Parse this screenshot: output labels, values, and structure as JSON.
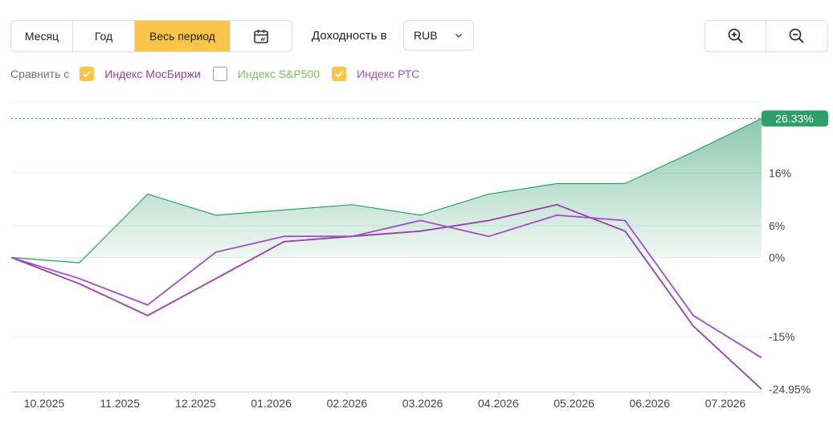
{
  "period_buttons": {
    "month": "Месяц",
    "year": "Год",
    "all": "Весь период",
    "calendar_icon": "calendar-icon"
  },
  "yield_label": "Доходность в",
  "currency": {
    "selected": "RUB",
    "icon": "chevron-down-icon"
  },
  "zoom": {
    "in_icon": "zoom-in-icon",
    "out_icon": "zoom-out-icon"
  },
  "compare": {
    "label": "Сравнить с",
    "items": [
      {
        "label": "Индекс МосБиржи",
        "checked": true,
        "color": "#9b3ea8"
      },
      {
        "label": "Индекс S&P500",
        "checked": false,
        "color": "#7cc05a"
      },
      {
        "label": "Индекс РТС",
        "checked": true,
        "color": "#a04fc8"
      }
    ]
  },
  "chart_data": {
    "type": "area",
    "x_ticks": [
      "10.2025",
      "11.2025",
      "12.2025",
      "01.2026",
      "02.2026",
      "03.2026",
      "04.2026",
      "05.2026",
      "06.2026",
      "07.2026"
    ],
    "y_ticks": [
      16,
      6,
      0,
      -15
    ],
    "y_tick_labels": [
      "16%",
      "6%",
      "0%",
      "-15%"
    ],
    "ylim": [
      -25.5,
      29
    ],
    "grid": true,
    "x": [
      "09.2025",
      "10.2025",
      "11.2025",
      "12.2025",
      "01.2026",
      "02.2026",
      "03.2026",
      "04.2026",
      "05.2026",
      "06.2026",
      "07.2026",
      "07.2026"
    ],
    "series": [
      {
        "values": [
          0,
          -1,
          12,
          8,
          9,
          10,
          8,
          12,
          14,
          14,
          20,
          26.33
        ],
        "color": "#2e9e6b",
        "fill": true,
        "last_label": "26.33%"
      },
      {
        "name": "Индекс МосБиржи",
        "values": [
          0,
          -5,
          -11,
          -4,
          3,
          4,
          5,
          7,
          10,
          5,
          -13,
          -24.95
        ],
        "color": "#9b3ea8",
        "last_label": "-24.95%"
      },
      {
        "name": "Индекс РТС",
        "values": [
          0,
          -4,
          -9,
          1,
          4,
          4,
          7,
          4,
          8,
          7,
          -11,
          -19
        ],
        "color": "#a04fc8"
      }
    ]
  }
}
